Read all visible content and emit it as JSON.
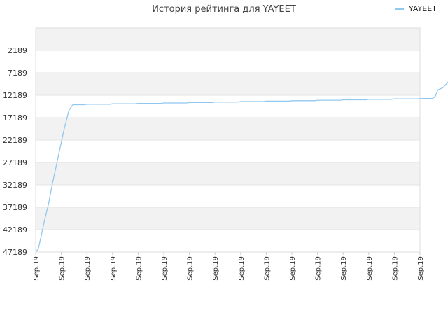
{
  "chart_data": {
    "type": "line",
    "title": "История рейтинга для YAYEET",
    "legend": {
      "position": "top-right",
      "entries": [
        "YAYEET"
      ]
    },
    "xlabel": "",
    "ylabel": "",
    "y_inverted": true,
    "ylim": [
      -2811,
      47189
    ],
    "y_ticks": [
      2189,
      7189,
      12189,
      17189,
      22189,
      27189,
      32189,
      37189,
      42189,
      47189
    ],
    "x_ticks": [
      "Sep.19",
      "Sep.19",
      "Sep.19",
      "Sep.19",
      "Sep.19",
      "Sep.19",
      "Sep.19",
      "Sep.19",
      "Sep.19",
      "Sep.19",
      "Sep.19",
      "Sep.19",
      "Sep.19",
      "Sep.19",
      "Sep.19",
      "Sep.19"
    ],
    "grid": true,
    "band_colors": [
      "#f2f2f2",
      "#ffffff"
    ],
    "series": [
      {
        "name": "YAYEET",
        "color": "#90c8f0",
        "points": [
          [
            0.0,
            47189
          ],
          [
            0.1,
            46500
          ],
          [
            0.2,
            44000
          ],
          [
            0.35,
            40000
          ],
          [
            0.5,
            36500
          ],
          [
            0.65,
            32000
          ],
          [
            0.8,
            28000
          ],
          [
            0.95,
            24000
          ],
          [
            1.1,
            20000
          ],
          [
            1.2,
            17800
          ],
          [
            1.3,
            15500
          ],
          [
            1.45,
            14300
          ],
          [
            1.9,
            14300
          ],
          [
            2.0,
            14200
          ],
          [
            2.9,
            14200
          ],
          [
            3.0,
            14100
          ],
          [
            3.9,
            14100
          ],
          [
            4.0,
            14000
          ],
          [
            4.9,
            14000
          ],
          [
            5.0,
            13900
          ],
          [
            5.9,
            13900
          ],
          [
            6.0,
            13800
          ],
          [
            6.9,
            13800
          ],
          [
            7.0,
            13700
          ],
          [
            7.9,
            13700
          ],
          [
            8.0,
            13600
          ],
          [
            8.9,
            13600
          ],
          [
            9.0,
            13500
          ],
          [
            9.9,
            13500
          ],
          [
            10.0,
            13400
          ],
          [
            10.9,
            13400
          ],
          [
            11.0,
            13300
          ],
          [
            11.9,
            13300
          ],
          [
            12.0,
            13200
          ],
          [
            12.9,
            13200
          ],
          [
            13.0,
            13100
          ],
          [
            13.9,
            13100
          ],
          [
            14.0,
            13000
          ],
          [
            14.9,
            13000
          ],
          [
            15.0,
            12900
          ],
          [
            15.5,
            12900
          ],
          [
            15.6,
            12400
          ],
          [
            15.7,
            11000
          ],
          [
            15.9,
            10500
          ],
          [
            16.1,
            9200
          ],
          [
            16.2,
            8800
          ],
          [
            16.3,
            8200
          ]
        ]
      }
    ]
  }
}
